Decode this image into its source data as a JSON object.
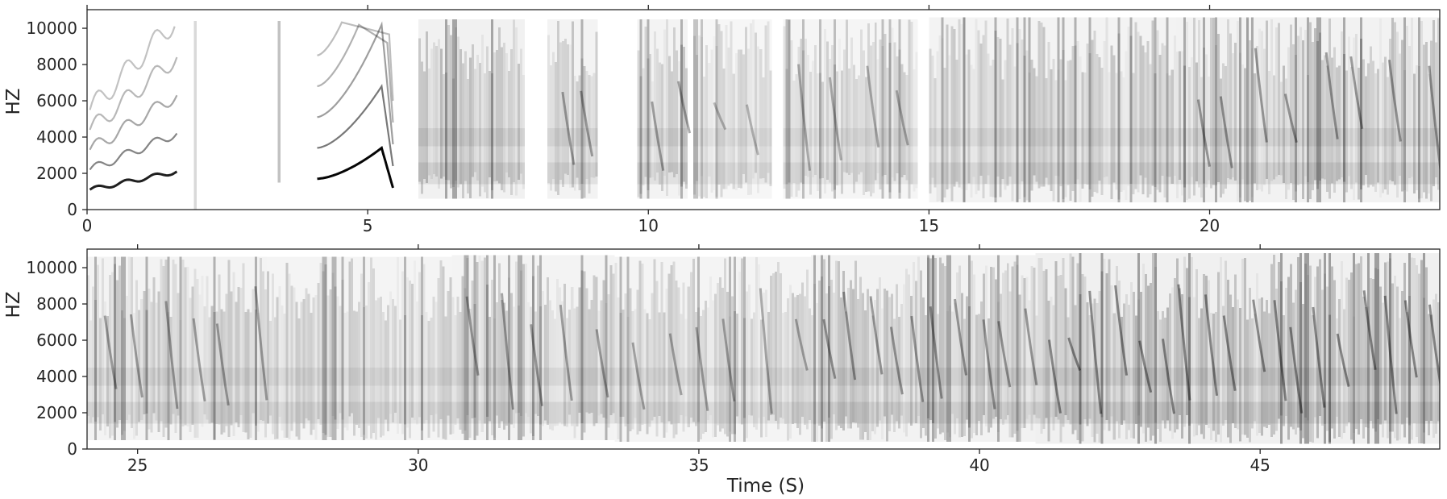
{
  "colors": {
    "ink": "#262626",
    "spectrogram": "#000000",
    "background": "#ffffff"
  },
  "chart_data": [
    {
      "type": "heatmap",
      "name": "spectrogram-top",
      "title": "",
      "xlabel": "",
      "ylabel": "HZ",
      "xlim": [
        0,
        24.1
      ],
      "ylim": [
        0,
        11025
      ],
      "xticks": [
        0,
        5,
        10,
        15,
        20
      ],
      "xtick_labels": [
        "0",
        "5",
        "10",
        "15",
        "20"
      ],
      "yticks": [
        0,
        2000,
        4000,
        6000,
        8000,
        10000
      ],
      "ytick_labels": [
        "0",
        "2000",
        "4000",
        "6000",
        "8000",
        "10000"
      ],
      "colormap": "white-to-black (greys)",
      "grid": false,
      "segments": [
        {
          "start": 0.05,
          "end": 1.6,
          "fmin": 1000,
          "fmax": 10400,
          "kind": "harmonic-sweep",
          "f0_start": 1100,
          "f0_end": 2100,
          "intensity": 0.8
        },
        {
          "start": 1.9,
          "end": 1.95,
          "fmin": 0,
          "fmax": 10400,
          "kind": "click",
          "intensity": 0.25
        },
        {
          "start": 3.4,
          "end": 3.45,
          "fmin": 1500,
          "fmax": 10400,
          "kind": "click",
          "intensity": 0.4
        },
        {
          "start": 4.1,
          "end": 5.45,
          "fmin": 1100,
          "fmax": 10400,
          "kind": "harmonic-arc",
          "f0_start": 1700,
          "f0_end": 1200,
          "f0_peak": 3400,
          "intensity": 0.9
        },
        {
          "start": 5.9,
          "end": 7.8,
          "fmin": 600,
          "fmax": 10500,
          "kind": "broadband",
          "intensity": 0.7
        },
        {
          "start": 8.2,
          "end": 9.1,
          "fmin": 600,
          "fmax": 10500,
          "kind": "chirps",
          "intensity": 0.6
        },
        {
          "start": 9.8,
          "end": 10.7,
          "fmin": 600,
          "fmax": 10500,
          "kind": "chirps",
          "intensity": 0.6
        },
        {
          "start": 10.8,
          "end": 12.2,
          "fmin": 600,
          "fmax": 10500,
          "kind": "mixed",
          "intensity": 0.45
        },
        {
          "start": 12.4,
          "end": 14.8,
          "fmin": 600,
          "fmax": 10500,
          "kind": "mixed",
          "intensity": 0.5
        },
        {
          "start": 15.0,
          "end": 19.4,
          "fmin": 400,
          "fmax": 10600,
          "kind": "broadband",
          "intensity": 0.6
        },
        {
          "start": 19.4,
          "end": 24.1,
          "fmin": 400,
          "fmax": 10600,
          "kind": "dense",
          "intensity": 0.65
        }
      ]
    },
    {
      "type": "heatmap",
      "name": "spectrogram-bottom",
      "title": "",
      "xlabel": "Time (S)",
      "ylabel": "HZ",
      "xlim": [
        24.1,
        48.2
      ],
      "ylim": [
        0,
        11025
      ],
      "xticks": [
        25,
        30,
        35,
        40,
        45
      ],
      "xtick_labels": [
        "25",
        "30",
        "35",
        "40",
        "45"
      ],
      "yticks": [
        0,
        2000,
        4000,
        6000,
        8000,
        10000
      ],
      "ytick_labels": [
        "0",
        "2000",
        "4000",
        "6000",
        "8000",
        "10000"
      ],
      "colormap": "white-to-black (greys)",
      "grid": false,
      "segments": [
        {
          "start": 24.1,
          "end": 27.3,
          "fmin": 500,
          "fmax": 10600,
          "kind": "dense",
          "intensity": 0.6
        },
        {
          "start": 27.3,
          "end": 30.6,
          "fmin": 500,
          "fmax": 10600,
          "kind": "broadband",
          "intensity": 0.55
        },
        {
          "start": 30.6,
          "end": 33.5,
          "fmin": 500,
          "fmax": 10700,
          "kind": "dense",
          "intensity": 0.6
        },
        {
          "start": 33.5,
          "end": 37.0,
          "fmin": 400,
          "fmax": 10600,
          "kind": "mixed",
          "intensity": 0.55
        },
        {
          "start": 37.0,
          "end": 41.0,
          "fmin": 400,
          "fmax": 10700,
          "kind": "chirps",
          "intensity": 0.65
        },
        {
          "start": 41.0,
          "end": 48.2,
          "fmin": 300,
          "fmax": 10800,
          "kind": "chirps",
          "intensity": 0.75
        }
      ]
    }
  ]
}
